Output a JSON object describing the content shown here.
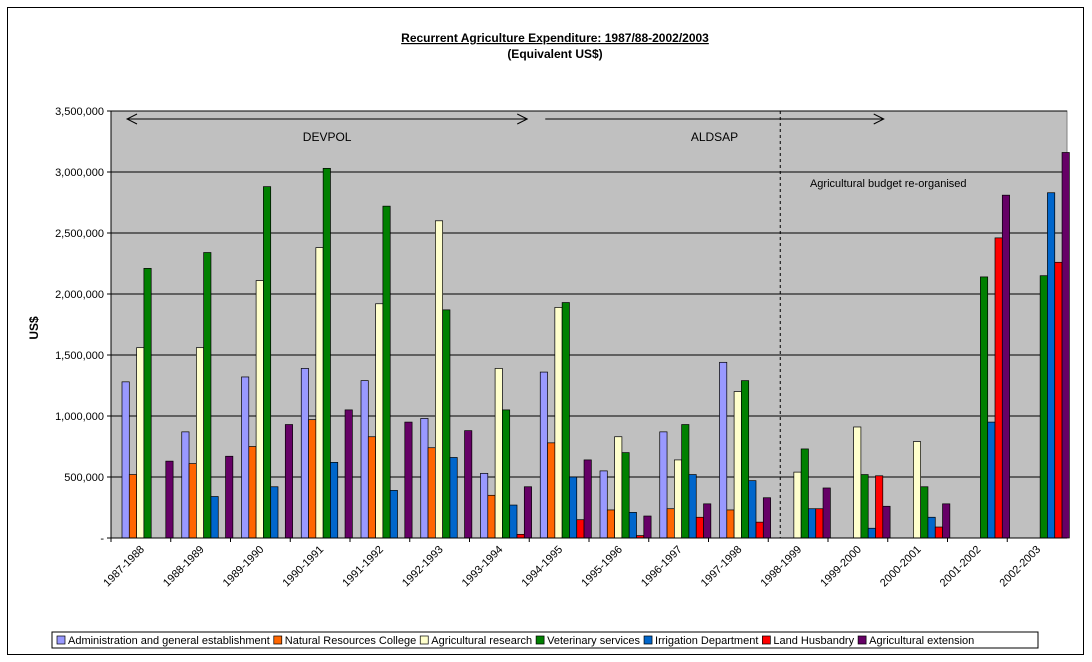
{
  "chart_data": {
    "type": "bar",
    "title": "Recurrent Agriculture Expenditure: 1987/88-2002/2003",
    "subtitle": "(Equivalent US$)",
    "ylabel": "US$",
    "xlabel": "",
    "ylim": [
      0,
      3500000
    ],
    "ytick_values": [
      0,
      500000,
      1000000,
      1500000,
      2000000,
      2500000,
      3000000,
      3500000
    ],
    "ytick_labels": [
      "-",
      "500,000",
      "1,000,000",
      "1,500,000",
      "2,000,000",
      "2,500,000",
      "3,000,000",
      "3,500,000"
    ],
    "grid": true,
    "legend_position": "bottom",
    "categories": [
      "1987-1988",
      "1988-1989",
      "1989-1990",
      "1990-1991",
      "1991-1992",
      "1992-1993",
      "1993-1994",
      "1994-1995",
      "1995-1996",
      "1996-1997",
      "1997-1998",
      "1998-1999",
      "1999-2000",
      "2000-2001",
      "2001-2002",
      "2002-2003"
    ],
    "series": [
      {
        "name": "Administration and general establishment",
        "color": "#9999ff",
        "values": [
          1280000,
          870000,
          1320000,
          1390000,
          1290000,
          980000,
          530000,
          1360000,
          550000,
          870000,
          1440000,
          0,
          0,
          0,
          0,
          0
        ]
      },
      {
        "name": "Natural Resources College",
        "color": "#ff6600",
        "values": [
          520000,
          610000,
          750000,
          970000,
          830000,
          740000,
          350000,
          780000,
          230000,
          240000,
          230000,
          0,
          0,
          0,
          0,
          0
        ]
      },
      {
        "name": "Agricultural research",
        "color": "#ffffcc",
        "values": [
          1560000,
          1560000,
          2110000,
          2380000,
          1920000,
          2600000,
          1390000,
          1890000,
          830000,
          640000,
          1200000,
          540000,
          910000,
          790000,
          0,
          0
        ]
      },
      {
        "name": "Veterinary services",
        "color": "#008000",
        "values": [
          2210000,
          2340000,
          2880000,
          3030000,
          2720000,
          1870000,
          1050000,
          1930000,
          700000,
          930000,
          1290000,
          730000,
          520000,
          420000,
          2140000,
          2150000
        ]
      },
      {
        "name": "Irrigation Department",
        "color": "#0066cc",
        "values": [
          0,
          340000,
          420000,
          620000,
          390000,
          660000,
          270000,
          500000,
          210000,
          520000,
          470000,
          240000,
          80000,
          170000,
          950000,
          2830000
        ]
      },
      {
        "name": "Land Husbandry",
        "color": "#ff0000",
        "values": [
          0,
          0,
          0,
          0,
          0,
          0,
          30000,
          150000,
          20000,
          170000,
          130000,
          240000,
          510000,
          90000,
          2460000,
          2260000
        ]
      },
      {
        "name": "Agricultural extension",
        "color": "#660066",
        "values": [
          630000,
          670000,
          930000,
          1050000,
          950000,
          880000,
          420000,
          640000,
          180000,
          280000,
          330000,
          410000,
          260000,
          280000,
          2810000,
          3160000
        ]
      }
    ],
    "annotations": [
      {
        "text": "DEVPOL",
        "type": "arrow",
        "from_category": "1987-1988",
        "to_category": "1993-1994"
      },
      {
        "text": "ALDSAP",
        "type": "arrow",
        "from_category": "1994-1995",
        "to_category": "1999-2000"
      },
      {
        "text": "Agricultural budget re-organised",
        "type": "dashed-line",
        "at_category": "1998-1999"
      }
    ]
  },
  "colors": {
    "plot_background": "#c0c0c0",
    "chart_background": "#ffffff",
    "gridline": "#000000"
  }
}
